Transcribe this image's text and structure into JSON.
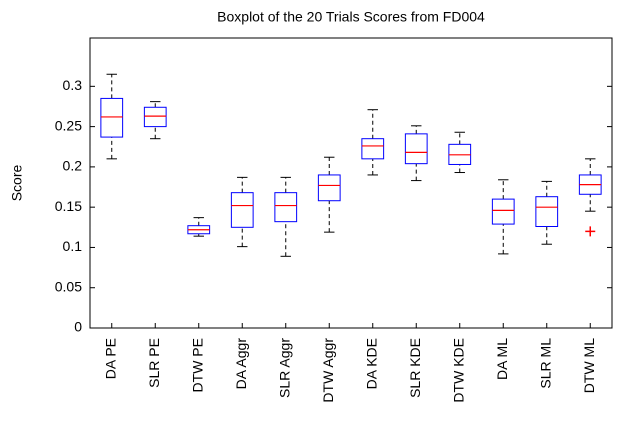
{
  "chart_data": {
    "type": "box",
    "title": "Boxplot of the 20 Trials Scores from FD004",
    "y_label": "Score",
    "categories": [
      "DA PE",
      "SLR PE",
      "DTW PE",
      "DA Aggr",
      "SLR Aggr",
      "DTW Aggr",
      "DA KDE",
      "SLR KDE",
      "DTW KDE",
      "DA ML",
      "SLR ML",
      "DTW ML"
    ],
    "boxes": [
      {
        "min": 0.21,
        "q1": 0.237,
        "median": 0.262,
        "q3": 0.285,
        "max": 0.315
      },
      {
        "min": 0.235,
        "q1": 0.25,
        "median": 0.263,
        "q3": 0.274,
        "max": 0.281
      },
      {
        "min": 0.114,
        "q1": 0.117,
        "median": 0.122,
        "q3": 0.127,
        "max": 0.137
      },
      {
        "min": 0.101,
        "q1": 0.125,
        "median": 0.152,
        "q3": 0.168,
        "max": 0.187
      },
      {
        "min": 0.089,
        "q1": 0.132,
        "median": 0.152,
        "q3": 0.168,
        "max": 0.187
      },
      {
        "min": 0.119,
        "q1": 0.158,
        "median": 0.177,
        "q3": 0.19,
        "max": 0.212
      },
      {
        "min": 0.19,
        "q1": 0.21,
        "median": 0.226,
        "q3": 0.235,
        "max": 0.271
      },
      {
        "min": 0.183,
        "q1": 0.204,
        "median": 0.218,
        "q3": 0.241,
        "max": 0.251
      },
      {
        "min": 0.193,
        "q1": 0.203,
        "median": 0.215,
        "q3": 0.228,
        "max": 0.243
      },
      {
        "min": 0.092,
        "q1": 0.129,
        "median": 0.146,
        "q3": 0.16,
        "max": 0.184
      },
      {
        "min": 0.104,
        "q1": 0.126,
        "median": 0.15,
        "q3": 0.163,
        "max": 0.182
      },
      {
        "min": 0.145,
        "q1": 0.166,
        "median": 0.178,
        "q3": 0.19,
        "max": 0.21,
        "outliers": [
          0.12
        ]
      }
    ],
    "box_color": "#0000ff",
    "median_color": "#ff0000",
    "whisker_color": "#000000",
    "outlier_color": "#ff0000",
    "ylim": [
      0,
      0.36
    ],
    "yticks": [
      0,
      0.05,
      0.1,
      0.15,
      0.2,
      0.25,
      0.3
    ],
    "grid": false
  }
}
